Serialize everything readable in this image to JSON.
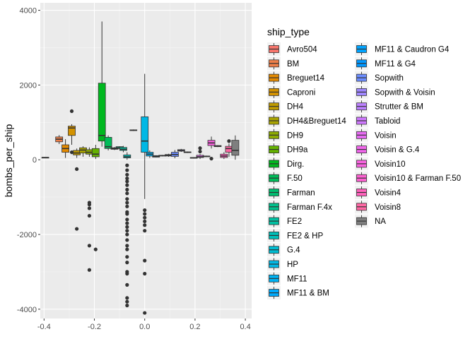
{
  "chart_data": {
    "type": "boxplot",
    "title": "",
    "xlabel": "",
    "ylabel": "bombs_per_ship",
    "xlim": [
      -0.4,
      0.4
    ],
    "ylim": [
      -4000,
      4000
    ],
    "x_ticks": [
      -0.4,
      -0.2,
      0.0,
      0.2,
      0.4
    ],
    "x_tick_labels": [
      "-0.4",
      "-0.2",
      "0.0",
      "0.2",
      "0.4"
    ],
    "y_ticks": [
      -4000,
      -2000,
      0,
      2000,
      4000
    ],
    "y_tick_labels": [
      "-4000",
      "-2000",
      "0",
      "2000",
      "4000"
    ],
    "grid": true,
    "legend": {
      "title": "ship_type",
      "position": "right",
      "columns": 2
    },
    "series": [
      {
        "name": "Avro504",
        "color": "#F8766D",
        "x": -0.395,
        "q1": 60,
        "median": 60,
        "q3": 60,
        "lower": 60,
        "upper": 60,
        "outliers": []
      },
      {
        "name": "BM",
        "color": "#EF7F49",
        "x": -0.34,
        "q1": 480,
        "median": 550,
        "q3": 610,
        "lower": 420,
        "upper": 660,
        "outliers": []
      },
      {
        "name": "Breguet14",
        "color": "#E38900",
        "x": -0.315,
        "q1": 200,
        "median": 300,
        "q3": 400,
        "lower": 50,
        "upper": 550,
        "outliers": []
      },
      {
        "name": "Caproni",
        "color": "#D39200",
        "x": -0.29,
        "q1": 650,
        "median": 850,
        "q3": 900,
        "lower": 400,
        "upper": 950,
        "outliers": [
          1300,
          200
        ]
      },
      {
        "name": "DH4",
        "color": "#C09B00",
        "x": -0.27,
        "q1": 130,
        "median": 180,
        "q3": 250,
        "lower": 50,
        "upper": 300,
        "outliers": [
          -250,
          -1850
        ]
      },
      {
        "name": "DH4&Breguet14",
        "color": "#A9A400",
        "x": -0.245,
        "q1": 180,
        "median": 260,
        "q3": 320,
        "lower": 80,
        "upper": 360,
        "outliers": []
      },
      {
        "name": "DH9",
        "color": "#8DAB00",
        "x": -0.22,
        "q1": 150,
        "median": 200,
        "q3": 270,
        "lower": 80,
        "upper": 330,
        "outliers": [
          -1150,
          -1200,
          -1300,
          -1500,
          -2300,
          -2950
        ]
      },
      {
        "name": "DH9a",
        "color": "#64B200",
        "x": -0.195,
        "q1": 80,
        "median": 150,
        "q3": 300,
        "lower": 20,
        "upper": 400,
        "outliers": [
          -2400
        ]
      },
      {
        "name": "Dirg.",
        "color": "#00B81F",
        "x": -0.17,
        "q1": 500,
        "median": 650,
        "q3": 2050,
        "lower": 350,
        "upper": 3700,
        "outliers": []
      },
      {
        "name": "F.50",
        "color": "#00BC59",
        "x": -0.145,
        "q1": 300,
        "median": 350,
        "q3": 600,
        "lower": 250,
        "upper": 650,
        "outliers": []
      },
      {
        "name": "Farman",
        "color": "#00BE70",
        "x": -0.12,
        "q1": 280,
        "median": 300,
        "q3": 320,
        "lower": 260,
        "upper": 340,
        "outliers": []
      },
      {
        "name": "Farman F.4x",
        "color": "#00C08B",
        "x": -0.1,
        "q1": 300,
        "median": 320,
        "q3": 350,
        "lower": 290,
        "upper": 360,
        "outliers": []
      },
      {
        "name": "FE2",
        "color": "#00C1A3",
        "x": -0.085,
        "q1": 250,
        "median": 280,
        "q3": 330,
        "lower": 200,
        "upper": 370,
        "outliers": []
      },
      {
        "name": "FE2 & HP",
        "color": "#00BFB9",
        "x": -0.07,
        "q1": 50,
        "median": 80,
        "q3": 130,
        "lower": 0,
        "upper": 200,
        "outliers": [
          -150,
          -280,
          -400,
          -500,
          -580,
          -680,
          -800,
          -900,
          -1050,
          -1150,
          -1250,
          -1400,
          -1450,
          -1600,
          -1700,
          -1800,
          -1900,
          -2000,
          -2150,
          -2300,
          -2400,
          -2600,
          -2750,
          -3000,
          -3050,
          -3350,
          -3700,
          -3800,
          -3900
        ]
      },
      {
        "name": "G.4",
        "color": "#00BCD1",
        "x": -0.045,
        "q1": 780,
        "median": 790,
        "q3": 800,
        "lower": 770,
        "upper": 810,
        "outliers": []
      },
      {
        "name": "HP",
        "color": "#00B8E5",
        "x": 0.0,
        "q1": 200,
        "median": 500,
        "q3": 1150,
        "lower": -1050,
        "upper": 2300,
        "outliers": [
          -1350,
          -1450,
          -1550,
          -1650,
          -1750,
          -1900,
          -2700,
          -3050,
          -4100
        ]
      },
      {
        "name": "MF11",
        "color": "#00B2F3",
        "x": 0.02,
        "q1": 100,
        "median": 150,
        "q3": 200,
        "lower": 50,
        "upper": 250,
        "outliers": []
      },
      {
        "name": "MF11 & BM",
        "color": "#00ABFD",
        "x": 0.045,
        "q1": 70,
        "median": 90,
        "q3": 110,
        "lower": 60,
        "upper": 120,
        "outliers": []
      },
      {
        "name": "MF11 & Caudron G4",
        "color": "#00A3FF",
        "x": 0.07,
        "q1": 100,
        "median": 110,
        "q3": 120,
        "lower": 90,
        "upper": 130,
        "outliers": []
      },
      {
        "name": "MF11 & G4",
        "color": "#0098FF",
        "x": 0.095,
        "q1": 100,
        "median": 120,
        "q3": 140,
        "lower": 80,
        "upper": 160,
        "outliers": []
      },
      {
        "name": "Sopwith",
        "color": "#6B8CFF",
        "x": 0.12,
        "q1": 90,
        "median": 140,
        "q3": 200,
        "lower": 40,
        "upper": 260,
        "outliers": []
      },
      {
        "name": "Sopwith & Voisin",
        "color": "#A088FF",
        "x": 0.145,
        "q1": 230,
        "median": 250,
        "q3": 270,
        "lower": 210,
        "upper": 290,
        "outliers": []
      },
      {
        "name": "Strutter & BM",
        "color": "#BC81FF",
        "x": 0.17,
        "q1": 190,
        "median": 200,
        "q3": 210,
        "lower": 180,
        "upper": 220,
        "outliers": []
      },
      {
        "name": "Tabloid",
        "color": "#CF78FF",
        "x": 0.195,
        "q1": 40,
        "median": 50,
        "q3": 60,
        "lower": 30,
        "upper": 70,
        "outliers": []
      },
      {
        "name": "Voisin",
        "color": "#E76BF3",
        "x": 0.22,
        "q1": 60,
        "median": 80,
        "q3": 120,
        "lower": 20,
        "upper": 150,
        "outliers": [
          220,
          310
        ]
      },
      {
        "name": "Voisin & G.4",
        "color": "#F066EA",
        "x": 0.245,
        "q1": 80,
        "median": 90,
        "q3": 100,
        "lower": 70,
        "upper": 110,
        "outliers": []
      },
      {
        "name": "Voisin10",
        "color": "#F863DF",
        "x": 0.265,
        "q1": 380,
        "median": 450,
        "q3": 520,
        "lower": 300,
        "upper": 620,
        "outliers": [
          30
        ]
      },
      {
        "name": "Voisin10 & Farman F.50",
        "color": "#FD61D1",
        "x": 0.29,
        "q1": 350,
        "median": 360,
        "q3": 380,
        "lower": 340,
        "upper": 390,
        "outliers": []
      },
      {
        "name": "Voisin4",
        "color": "#FF62BC",
        "x": 0.315,
        "q1": 60,
        "median": 100,
        "q3": 150,
        "lower": 20,
        "upper": 200,
        "outliers": []
      },
      {
        "name": "Voisin8",
        "color": "#FF67A4",
        "x": 0.335,
        "q1": 200,
        "median": 300,
        "q3": 360,
        "lower": 80,
        "upper": 430,
        "outliers": [
          500
        ]
      },
      {
        "name": "NA",
        "color": "#7F7F7F",
        "x": 0.36,
        "q1": 120,
        "median": 250,
        "q3": 520,
        "lower": 0,
        "upper": 650,
        "outliers": []
      }
    ]
  }
}
